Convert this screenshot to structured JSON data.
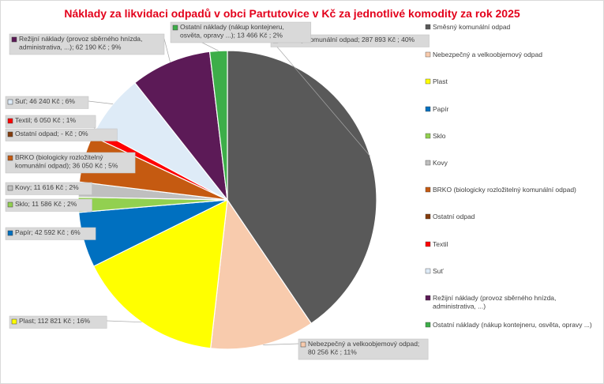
{
  "chart_data": {
    "type": "pie",
    "title": "Náklady za likvidaci odpadů v obci Partutovice v Kč za jednotlivé komodity za rok 2025",
    "legend_position": "right",
    "slices": [
      {
        "name": "Směsný komunální odpad",
        "value": 287893,
        "color": "#595959",
        "label_lines": [
          "Směsný komunální odpad;  287 893 Kč ; 40%"
        ],
        "legend_lines": [
          "Směsný komunální odpad"
        ]
      },
      {
        "name": "Nebezpečný a velkoobjemový odpad",
        "value": 80256,
        "color": "#f8cbad",
        "label_lines": [
          "Nebezpečný a velkoobjemový odpad;",
          "80 256 Kč ; 11%"
        ],
        "legend_lines": [
          "Nebezpečný a velkoobjemový odpad"
        ]
      },
      {
        "name": "Plast",
        "value": 112821,
        "color": "#ffff00",
        "label_lines": [
          "Plast;  112 821 Kč ; 16%"
        ],
        "legend_lines": [
          "Plast"
        ]
      },
      {
        "name": "Papír",
        "value": 42592,
        "color": "#0070c0",
        "label_lines": [
          "Papír;  42 592 Kč ; 6%"
        ],
        "legend_lines": [
          "Papír"
        ]
      },
      {
        "name": "Sklo",
        "value": 11586,
        "color": "#92d050",
        "label_lines": [
          "Sklo;  11 586 Kč ; 2%"
        ],
        "legend_lines": [
          "Sklo"
        ]
      },
      {
        "name": "Kovy",
        "value": 11616,
        "color": "#bfbfbf",
        "label_lines": [
          "Kovy;  11 616 Kč ; 2%"
        ],
        "legend_lines": [
          "Kovy"
        ]
      },
      {
        "name": "BRKO (biologicky rozložitelný komunální odpad)",
        "value": 36050,
        "color": "#c55a11",
        "label_lines": [
          "BRKO (biologicky rozložitelný",
          "komunální odpad);  36 050 Kč ; 5%"
        ],
        "legend_lines": [
          "BRKO (biologicky rozložitelný komunální odpad)"
        ]
      },
      {
        "name": "Ostatní odpad",
        "value": 0,
        "color": "#843c0c",
        "label_lines": [
          "Ostatní odpad;   -   Kč ; 0%"
        ],
        "legend_lines": [
          "Ostatní odpad"
        ]
      },
      {
        "name": "Textil",
        "value": 6050,
        "color": "#ff0000",
        "label_lines": [
          "Textil;  6 050 Kč ; 1%"
        ],
        "legend_lines": [
          "Textil"
        ]
      },
      {
        "name": "Suť",
        "value": 46240,
        "color": "#deebf7",
        "label_lines": [
          "Suť;  46 240 Kč ; 6%"
        ],
        "legend_lines": [
          "Suť"
        ]
      },
      {
        "name": "Režijní náklady (provoz sběrného hnízda, administrativa, ...)",
        "value": 62190,
        "color": "#5c1a57",
        "label_lines": [
          "Režijní náklady (provoz sběrného hnízda,",
          "administrativa, ...);  62 190 Kč ; 9%"
        ],
        "legend_lines": [
          "Režijní náklady (provoz sběrného hnízda,",
          "administrativa, ...)"
        ]
      },
      {
        "name": "Ostatní náklady (nákup kontejneru, osvěta, opravy ...)",
        "value": 13466,
        "color": "#3dae49",
        "label_lines": [
          "Ostatní náklady (nákup kontejneru,",
          "osvěta, opravy ...);  13 466 Kč ; 2%"
        ],
        "legend_lines": [
          "Ostatní náklady (nákup kontejneru, osvěta, opravy ...)"
        ]
      }
    ]
  }
}
